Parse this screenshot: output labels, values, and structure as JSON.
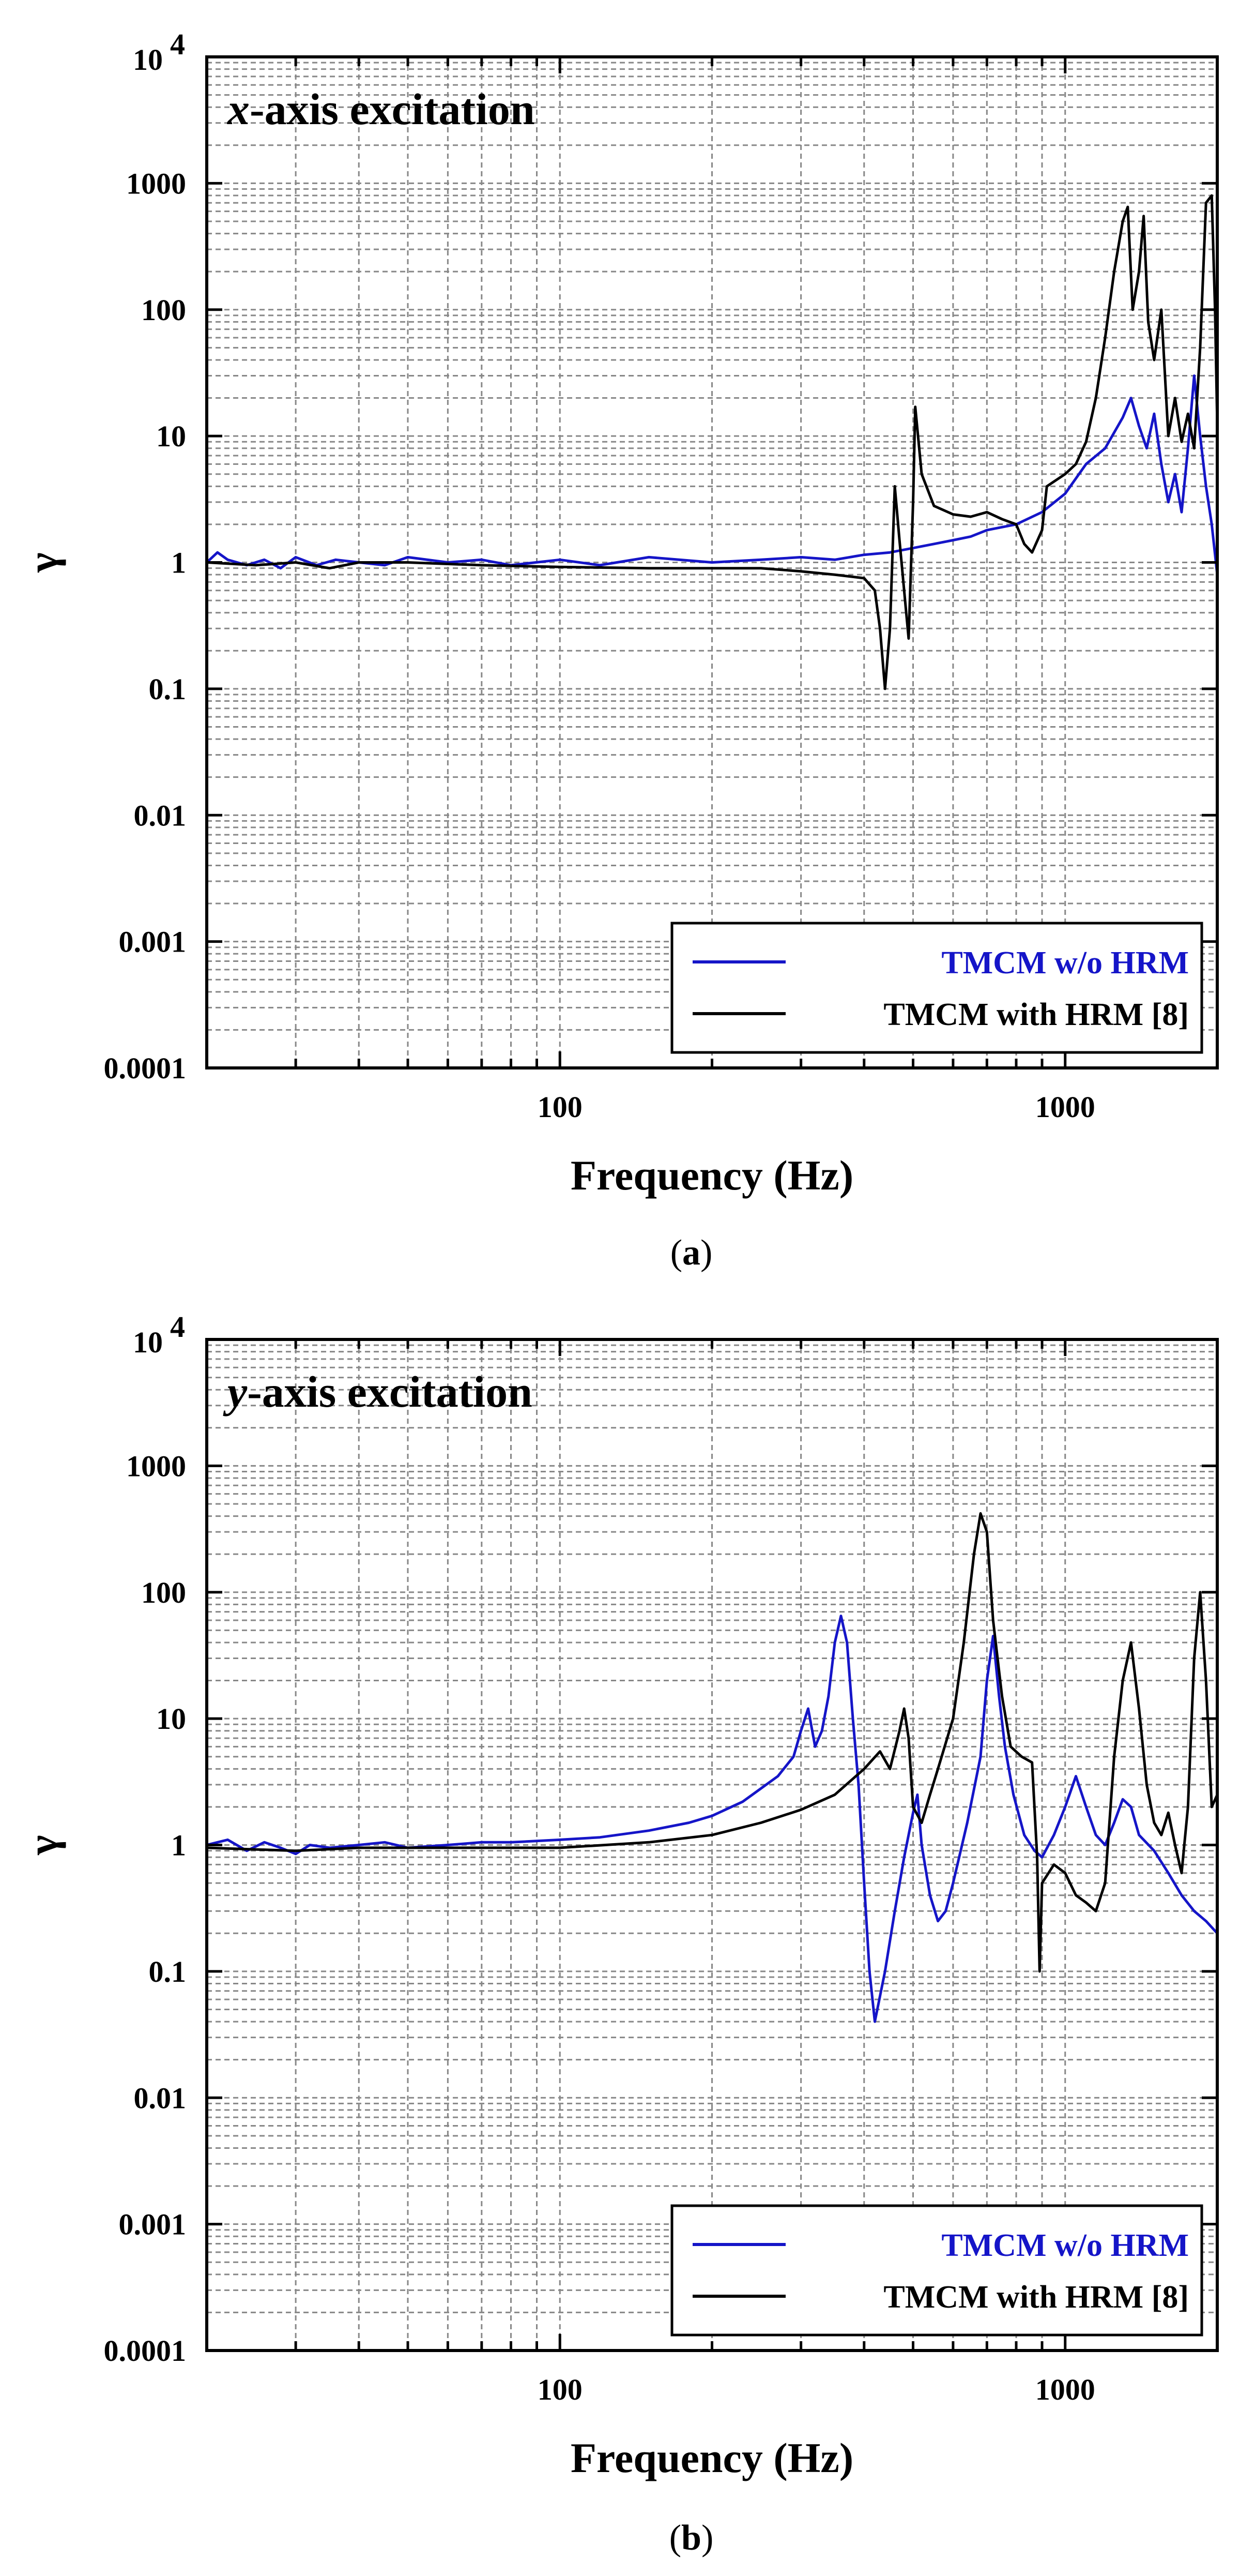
{
  "chart_data": [
    {
      "type": "line",
      "panel_caption": "a",
      "title_var": "x",
      "title_rest": "-axis excitation",
      "xlabel": "Frequency (Hz)",
      "ylabel": "γ",
      "xscale": "log",
      "yscale": "log",
      "xlim": [
        20,
        2000
      ],
      "ylim": [
        0.0001,
        10000
      ],
      "x_tick_labels": [
        "100",
        "1000"
      ],
      "x_ticks": [
        100,
        1000
      ],
      "y_tick_labels": [
        "0.0001",
        "0.001",
        "0.01",
        "0.1",
        "1",
        "10",
        "100",
        "1000"
      ],
      "y_ticks": [
        0.0001,
        0.001,
        0.01,
        0.1,
        1,
        10,
        100,
        1000
      ],
      "y_top_label": {
        "base": "10",
        "exp": "4"
      },
      "grid": true,
      "legend_position": "bottom-right",
      "series": [
        {
          "name": "TMCM w/o HRM",
          "color": "#1515c8",
          "points": [
            [
              20,
              1.0
            ],
            [
              21,
              1.2
            ],
            [
              22,
              1.05
            ],
            [
              24,
              0.95
            ],
            [
              26,
              1.05
            ],
            [
              28,
              0.9
            ],
            [
              30,
              1.1
            ],
            [
              33,
              0.95
            ],
            [
              36,
              1.05
            ],
            [
              40,
              1.0
            ],
            [
              45,
              0.95
            ],
            [
              50,
              1.1
            ],
            [
              60,
              1.0
            ],
            [
              70,
              1.05
            ],
            [
              80,
              0.95
            ],
            [
              100,
              1.05
            ],
            [
              120,
              0.95
            ],
            [
              150,
              1.1
            ],
            [
              200,
              1.0
            ],
            [
              250,
              1.05
            ],
            [
              300,
              1.1
            ],
            [
              350,
              1.05
            ],
            [
              400,
              1.15
            ],
            [
              450,
              1.2
            ],
            [
              500,
              1.3
            ],
            [
              550,
              1.4
            ],
            [
              600,
              1.5
            ],
            [
              650,
              1.6
            ],
            [
              700,
              1.8
            ],
            [
              800,
              2.0
            ],
            [
              900,
              2.5
            ],
            [
              1000,
              3.5
            ],
            [
              1100,
              6.0
            ],
            [
              1200,
              8.0
            ],
            [
              1300,
              14.0
            ],
            [
              1350,
              20.0
            ],
            [
              1400,
              12.0
            ],
            [
              1450,
              8.0
            ],
            [
              1500,
              15.0
            ],
            [
              1550,
              6.0
            ],
            [
              1600,
              3.0
            ],
            [
              1650,
              5.0
            ],
            [
              1700,
              2.5
            ],
            [
              1750,
              8.0
            ],
            [
              1800,
              30.0
            ],
            [
              1850,
              10.0
            ],
            [
              1900,
              4.0
            ],
            [
              1950,
              2.0
            ],
            [
              2000,
              0.8
            ]
          ]
        },
        {
          "name": "TMCM with HRM [8]",
          "color": "#000000",
          "points": [
            [
              20,
              1.0
            ],
            [
              25,
              0.95
            ],
            [
              30,
              1.0
            ],
            [
              35,
              0.9
            ],
            [
              40,
              1.0
            ],
            [
              50,
              1.0
            ],
            [
              70,
              0.95
            ],
            [
              100,
              0.92
            ],
            [
              150,
              0.9
            ],
            [
              200,
              0.9
            ],
            [
              250,
              0.9
            ],
            [
              300,
              0.85
            ],
            [
              350,
              0.8
            ],
            [
              400,
              0.75
            ],
            [
              420,
              0.6
            ],
            [
              430,
              0.3
            ],
            [
              440,
              0.1
            ],
            [
              450,
              0.3
            ],
            [
              460,
              4.0
            ],
            [
              470,
              1.5
            ],
            [
              480,
              0.6
            ],
            [
              490,
              0.25
            ],
            [
              500,
              3.0
            ],
            [
              505,
              17.0
            ],
            [
              520,
              5.0
            ],
            [
              550,
              2.8
            ],
            [
              600,
              2.4
            ],
            [
              650,
              2.3
            ],
            [
              700,
              2.5
            ],
            [
              750,
              2.2
            ],
            [
              800,
              2.0
            ],
            [
              830,
              1.4
            ],
            [
              860,
              1.2
            ],
            [
              900,
              1.8
            ],
            [
              920,
              4.0
            ],
            [
              1000,
              5.0
            ],
            [
              1050,
              6.0
            ],
            [
              1100,
              9.0
            ],
            [
              1150,
              20.0
            ],
            [
              1200,
              60.0
            ],
            [
              1250,
              200.0
            ],
            [
              1300,
              500.0
            ],
            [
              1330,
              650.0
            ],
            [
              1360,
              100.0
            ],
            [
              1400,
              200.0
            ],
            [
              1430,
              550.0
            ],
            [
              1460,
              80.0
            ],
            [
              1500,
              40.0
            ],
            [
              1550,
              100.0
            ],
            [
              1600,
              10.0
            ],
            [
              1650,
              20.0
            ],
            [
              1700,
              9.0
            ],
            [
              1750,
              15.0
            ],
            [
              1800,
              8.0
            ],
            [
              1850,
              50.0
            ],
            [
              1900,
              700.0
            ],
            [
              1950,
              800.0
            ],
            [
              1980,
              100.0
            ],
            [
              2000,
              12.0
            ]
          ]
        }
      ]
    },
    {
      "type": "line",
      "panel_caption": "b",
      "title_var": "y",
      "title_rest": "-axis excitation",
      "xlabel": "Frequency (Hz)",
      "ylabel": "γ",
      "xscale": "log",
      "yscale": "log",
      "xlim": [
        20,
        2000
      ],
      "ylim": [
        0.0001,
        10000
      ],
      "x_tick_labels": [
        "100",
        "1000"
      ],
      "x_ticks": [
        100,
        1000
      ],
      "y_tick_labels": [
        "0.0001",
        "0.001",
        "0.01",
        "0.1",
        "1",
        "10",
        "100",
        "1000"
      ],
      "y_ticks": [
        0.0001,
        0.001,
        0.01,
        0.1,
        1,
        10,
        100,
        1000
      ],
      "y_top_label": {
        "base": "10",
        "exp": "4"
      },
      "grid": true,
      "legend_position": "bottom-right",
      "series": [
        {
          "name": "TMCM w/o HRM",
          "color": "#1515c8",
          "points": [
            [
              20,
              1.0
            ],
            [
              22,
              1.1
            ],
            [
              24,
              0.9
            ],
            [
              26,
              1.05
            ],
            [
              28,
              0.95
            ],
            [
              30,
              0.85
            ],
            [
              32,
              1.0
            ],
            [
              35,
              0.95
            ],
            [
              40,
              1.0
            ],
            [
              45,
              1.05
            ],
            [
              50,
              0.95
            ],
            [
              60,
              1.0
            ],
            [
              70,
              1.05
            ],
            [
              80,
              1.05
            ],
            [
              100,
              1.1
            ],
            [
              120,
              1.15
            ],
            [
              150,
              1.3
            ],
            [
              180,
              1.5
            ],
            [
              200,
              1.7
            ],
            [
              230,
              2.2
            ],
            [
              250,
              2.8
            ],
            [
              270,
              3.5
            ],
            [
              290,
              5.0
            ],
            [
              300,
              8.0
            ],
            [
              310,
              12.0
            ],
            [
              320,
              6.0
            ],
            [
              330,
              8.0
            ],
            [
              340,
              15.0
            ],
            [
              350,
              40.0
            ],
            [
              360,
              65.0
            ],
            [
              370,
              40.0
            ],
            [
              380,
              10.0
            ],
            [
              390,
              3.0
            ],
            [
              400,
              0.5
            ],
            [
              410,
              0.1
            ],
            [
              420,
              0.04
            ],
            [
              440,
              0.1
            ],
            [
              460,
              0.3
            ],
            [
              480,
              0.8
            ],
            [
              500,
              1.8
            ],
            [
              510,
              2.5
            ],
            [
              520,
              1.0
            ],
            [
              540,
              0.4
            ],
            [
              560,
              0.25
            ],
            [
              580,
              0.3
            ],
            [
              600,
              0.5
            ],
            [
              640,
              1.5
            ],
            [
              680,
              5.0
            ],
            [
              700,
              20.0
            ],
            [
              720,
              45.0
            ],
            [
              740,
              15.0
            ],
            [
              760,
              6.0
            ],
            [
              790,
              2.5
            ],
            [
              830,
              1.2
            ],
            [
              870,
              0.9
            ],
            [
              900,
              0.8
            ],
            [
              950,
              1.2
            ],
            [
              1000,
              2.0
            ],
            [
              1050,
              3.5
            ],
            [
              1100,
              2.0
            ],
            [
              1150,
              1.2
            ],
            [
              1200,
              1.0
            ],
            [
              1250,
              1.5
            ],
            [
              1300,
              2.3
            ],
            [
              1350,
              2.0
            ],
            [
              1400,
              1.2
            ],
            [
              1500,
              0.9
            ],
            [
              1600,
              0.6
            ],
            [
              1700,
              0.4
            ],
            [
              1800,
              0.3
            ],
            [
              1900,
              0.25
            ],
            [
              2000,
              0.2
            ]
          ]
        },
        {
          "name": "TMCM with HRM [8]",
          "color": "#000000",
          "points": [
            [
              20,
              0.95
            ],
            [
              30,
              0.9
            ],
            [
              40,
              0.95
            ],
            [
              60,
              0.95
            ],
            [
              100,
              0.95
            ],
            [
              150,
              1.05
            ],
            [
              200,
              1.2
            ],
            [
              250,
              1.5
            ],
            [
              300,
              1.9
            ],
            [
              350,
              2.5
            ],
            [
              400,
              4.0
            ],
            [
              430,
              5.5
            ],
            [
              450,
              4.0
            ],
            [
              470,
              8.0
            ],
            [
              480,
              12.0
            ],
            [
              490,
              7.0
            ],
            [
              500,
              2.0
            ],
            [
              520,
              1.5
            ],
            [
              540,
              2.5
            ],
            [
              560,
              4.0
            ],
            [
              600,
              10.0
            ],
            [
              630,
              40.0
            ],
            [
              660,
              200.0
            ],
            [
              680,
              420.0
            ],
            [
              700,
              300.0
            ],
            [
              720,
              60.0
            ],
            [
              750,
              15.0
            ],
            [
              780,
              6.0
            ],
            [
              820,
              5.0
            ],
            [
              860,
              4.5
            ],
            [
              880,
              0.8
            ],
            [
              890,
              0.1
            ],
            [
              900,
              0.5
            ],
            [
              950,
              0.7
            ],
            [
              1000,
              0.6
            ],
            [
              1050,
              0.4
            ],
            [
              1100,
              0.35
            ],
            [
              1150,
              0.3
            ],
            [
              1200,
              0.5
            ],
            [
              1250,
              5.0
            ],
            [
              1300,
              20.0
            ],
            [
              1350,
              40.0
            ],
            [
              1400,
              12.0
            ],
            [
              1450,
              3.0
            ],
            [
              1500,
              1.5
            ],
            [
              1550,
              1.2
            ],
            [
              1600,
              1.8
            ],
            [
              1650,
              1.0
            ],
            [
              1700,
              0.6
            ],
            [
              1750,
              2.0
            ],
            [
              1800,
              30.0
            ],
            [
              1850,
              100.0
            ],
            [
              1900,
              20.0
            ],
            [
              1950,
              2.0
            ],
            [
              2000,
              2.5
            ]
          ]
        }
      ]
    }
  ]
}
